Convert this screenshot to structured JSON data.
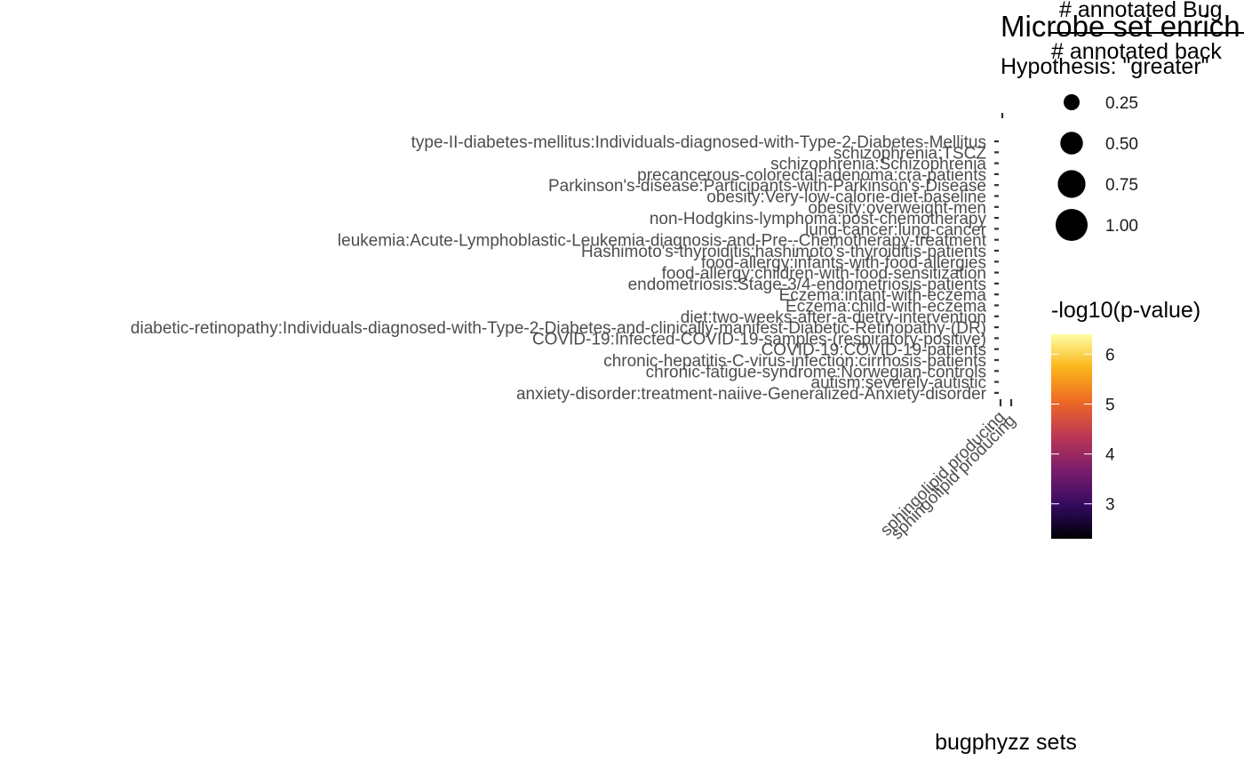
{
  "chart_data": {
    "type": "scatter",
    "title": "Microbe set enrich",
    "subtitle": "Hypothesis: \"greater\"",
    "caption_top": "# annotated Bug",
    "caption_bottom": "# annotated back",
    "xlabel": "bugphyzz sets",
    "ylabel": "",
    "categories_y": [
      "type-II-diabetes-mellitus:Individuals-diagnosed-with-Type-2-Diabetes-Mellitus",
      "schizophrenia:TSCZ",
      "schizophrenia:Schizophrenia",
      "precancerous-colorectal-adenoma:cra-patients",
      "Parkinson's-disease:Participants-with-Parkinson's-Disease",
      "obesity:Very-low-calorie-diet-baseline",
      "obesity:overweight-men",
      "non-Hodgkins-lymphoma:post-chemotherapy",
      "lung-cancer:lung-cancer",
      "leukemia:Acute-Lymphoblastic-Leukemia-diagnosis-and-Pre--Chemotherapy-treatment",
      "Hashimoto's-thyroiditis:hashimoto's-thyroiditis-patients",
      "food-allergy:infants-with-food-allergies",
      "food-allergy:children-with-food-sensitization",
      "endometriosis:Stage-3/4-endometriosis-patients",
      "Eczema:infant-with-eczema",
      "Eczema:child-with-eczema",
      "diet:two-weeks-after-a-dietry-intervention",
      "diabetic-retinopathy:Individuals-diagnosed-with-Type-2-Diabetes-and-clinically-manifest-Diabetic-Retinopathy-(DR)",
      "COVID-19:Infected-COVID-19-samples-(respiratory-positive)",
      "COVID-19:COVID-19-patients",
      "chronic-hepatitis-C-virus-infection:cirrhosis-patients",
      "chronic-fatigue-syndrome:Norwegian-controls",
      "autism:severely-autistic",
      "anxiety-disorder:treatment-naiive-Generalized-Anxiety-disorder"
    ],
    "categories_x": [
      "sphingolipid producing",
      "sphingolipid producing"
    ],
    "points": [],
    "size_legend": {
      "values": [
        0.25,
        0.5,
        0.75,
        1.0
      ],
      "labels": [
        "0.25",
        "0.50",
        "0.75",
        "1.00"
      ]
    },
    "color_legend": {
      "title": "-log10(p-value)",
      "min": 2.3,
      "max": 6.4,
      "breaks": [
        3,
        4,
        5,
        6
      ],
      "labels": [
        "3",
        "4",
        "5",
        "6"
      ],
      "palette": [
        "#000004",
        "#320a5e",
        "#781c6d",
        "#bc3754",
        "#ed6925",
        "#fbb61a",
        "#fcffa4"
      ]
    },
    "grid": false,
    "legend_position": "right"
  }
}
